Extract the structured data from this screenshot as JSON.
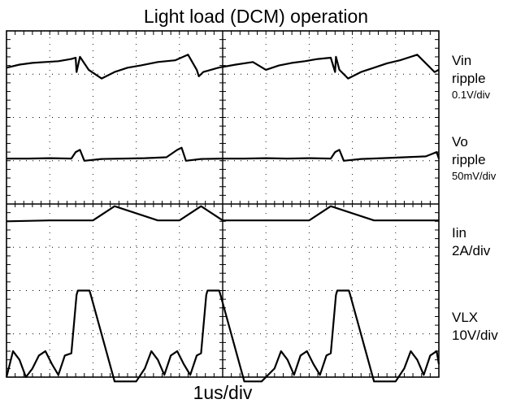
{
  "chart_data": {
    "type": "line",
    "title": "Light load (DCM) operation",
    "xlabel": "1us/div",
    "ylabel": "",
    "grid": true,
    "divisions": {
      "x": 10,
      "y": 8
    },
    "x_unit": "div",
    "xlim": [
      0,
      10
    ],
    "series": [
      {
        "name": "Vin ripple",
        "scale": "0.1V/div",
        "x": [
          0,
          0.3,
          0.6,
          0.9,
          1.2,
          1.5,
          1.6,
          1.62,
          1.7,
          1.9,
          2.2,
          2.5,
          2.8,
          3.1,
          3.5,
          3.9,
          4.2,
          4.4,
          4.45,
          4.55,
          4.9,
          5.3,
          5.7,
          6.0,
          6.3,
          6.6,
          6.9,
          7.2,
          7.5,
          7.6,
          7.62,
          7.7,
          7.9,
          8.2,
          8.5,
          8.8,
          9.1,
          9.5,
          9.9,
          10
        ],
        "values": [
          7.15,
          7.22,
          7.26,
          7.28,
          7.3,
          7.35,
          7.38,
          7.05,
          7.4,
          7.1,
          6.9,
          7.05,
          7.15,
          7.2,
          7.28,
          7.32,
          7.45,
          7.1,
          6.95,
          7.05,
          7.15,
          7.22,
          7.28,
          7.1,
          7.2,
          7.26,
          7.3,
          7.35,
          7.38,
          7.05,
          7.4,
          7.1,
          6.9,
          7.05,
          7.15,
          7.25,
          7.32,
          7.45,
          7.05,
          7.1
        ]
      },
      {
        "name": "Vo ripple",
        "scale": "50mV/div",
        "x": [
          0,
          0.5,
          1.0,
          1.5,
          1.6,
          1.7,
          1.8,
          2.2,
          2.7,
          3.2,
          3.7,
          3.95,
          4.05,
          4.15,
          4.5,
          5.0,
          5.5,
          6.0,
          6.5,
          7.0,
          7.5,
          7.6,
          7.7,
          7.8,
          8.2,
          8.7,
          9.2,
          9.7,
          9.95,
          10.0
        ],
        "values": [
          5.05,
          5.05,
          5.06,
          5.05,
          5.2,
          5.25,
          5.0,
          5.04,
          5.05,
          5.06,
          5.08,
          5.25,
          5.3,
          5.0,
          5.04,
          5.05,
          5.05,
          5.06,
          5.05,
          5.06,
          5.05,
          5.2,
          5.25,
          5.0,
          5.04,
          5.06,
          5.08,
          5.1,
          5.2,
          5.05
        ]
      },
      {
        "name": "Iin",
        "scale": "2A/div",
        "x": [
          0,
          1.0,
          2.0,
          2.5,
          3.5,
          4.0,
          4.5,
          5.0,
          6.0,
          7.0,
          7.5,
          8.5,
          9.0,
          10.0
        ],
        "values": [
          3.6,
          3.62,
          3.62,
          3.95,
          3.62,
          3.62,
          3.95,
          3.62,
          3.62,
          3.62,
          3.95,
          3.62,
          3.62,
          3.62
        ]
      },
      {
        "name": "VLX",
        "scale": "10V/div",
        "x": [
          0,
          0.15,
          0.3,
          0.45,
          0.6,
          0.75,
          0.9,
          1.05,
          1.2,
          1.35,
          1.5,
          1.62,
          1.65,
          1.92,
          1.95,
          2.5,
          3.0,
          3.2,
          3.35,
          3.5,
          3.65,
          3.8,
          3.95,
          4.1,
          4.25,
          4.4,
          4.5,
          4.62,
          4.65,
          4.92,
          4.95,
          5.5,
          5.9,
          6.2,
          6.35,
          6.5,
          6.65,
          6.8,
          6.95,
          7.1,
          7.25,
          7.4,
          7.5,
          7.62,
          7.65,
          7.92,
          7.95,
          8.5,
          9.0,
          9.2,
          9.35,
          9.5,
          9.65,
          9.8,
          9.95,
          10.0
        ],
        "values": [
          0.0,
          0.6,
          0.4,
          0.0,
          0.2,
          0.5,
          0.6,
          0.3,
          0.05,
          0.5,
          0.55,
          1.9,
          2.0,
          2.0,
          1.9,
          -0.1,
          -0.1,
          0.2,
          0.6,
          0.4,
          0.05,
          0.5,
          0.6,
          0.3,
          0.05,
          0.5,
          0.55,
          1.9,
          2.0,
          2.0,
          1.9,
          -0.1,
          -0.1,
          0.2,
          0.6,
          0.4,
          0.05,
          0.5,
          0.6,
          0.3,
          0.05,
          0.5,
          0.55,
          1.9,
          2.0,
          2.0,
          1.9,
          -0.1,
          -0.1,
          0.2,
          0.6,
          0.4,
          0.05,
          0.5,
          0.6,
          0.3
        ]
      }
    ]
  },
  "labels": [
    {
      "main": "Vin",
      "main2": "ripple",
      "sub": "0.1V/div"
    },
    {
      "main": "Vo",
      "main2": "ripple",
      "sub": "50mV/div"
    },
    {
      "main": "Iin",
      "main2": "",
      "sub": "2A/div"
    },
    {
      "main": "VLX",
      "main2": "",
      "sub": "10V/div"
    }
  ],
  "colors": {
    "trace": "#000000",
    "grid": "#000000",
    "background": "#ffffff"
  }
}
